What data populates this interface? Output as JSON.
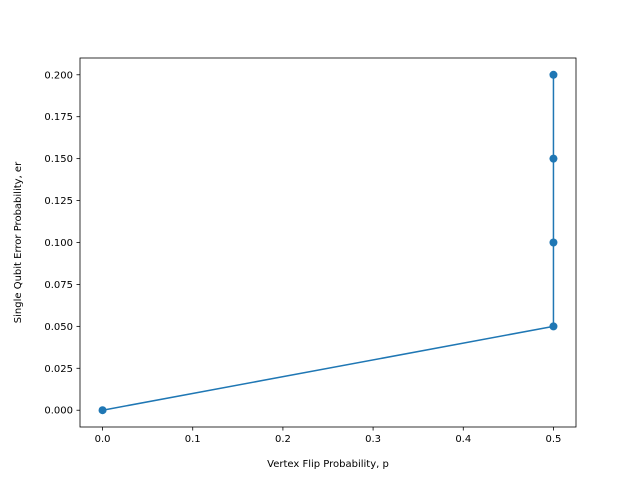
{
  "chart_data": {
    "type": "line",
    "title": "",
    "xlabel": "Vertex Flip Probability, p",
    "ylabel": "Single Qubit Error Probability, er",
    "xlim": [
      -0.025,
      0.525
    ],
    "ylim": [
      -0.01,
      0.21
    ],
    "xticks": [
      0.0,
      0.1,
      0.2,
      0.3,
      0.4,
      0.5
    ],
    "xtick_labels": [
      "0.0",
      "0.1",
      "0.2",
      "0.3",
      "0.4",
      "0.5"
    ],
    "yticks": [
      0.0,
      0.025,
      0.05,
      0.075,
      0.1,
      0.125,
      0.15,
      0.175,
      0.2
    ],
    "ytick_labels": [
      "0.000",
      "0.025",
      "0.050",
      "0.075",
      "0.100",
      "0.125",
      "0.150",
      "0.175",
      "0.200"
    ],
    "grid": false,
    "series": [
      {
        "x": [
          0.0,
          0.5,
          0.5,
          0.5,
          0.5
        ],
        "y": [
          0.0,
          0.05,
          0.1,
          0.15,
          0.2
        ],
        "color": "#1f77b4",
        "marker": "circle"
      }
    ]
  }
}
